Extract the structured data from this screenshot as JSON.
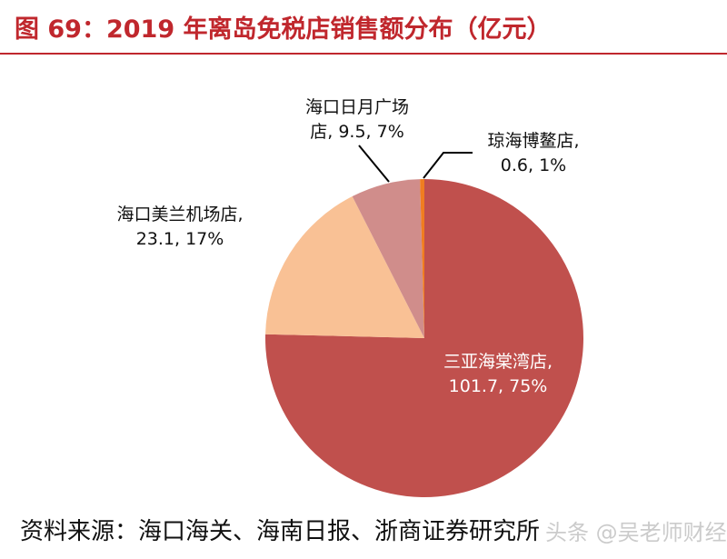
{
  "header": {
    "title": "图 69：2019 年离岛免税店销售额分布（亿元）"
  },
  "chart_data": {
    "type": "pie",
    "slices": [
      {
        "name": "三亚海棠湾店",
        "value": 101.7,
        "percent": "75%",
        "color": "#c0504d",
        "label_color": "#ffffff"
      },
      {
        "name": "海口美兰机场店",
        "value": 23.1,
        "percent": "17%",
        "color": "#f9c195",
        "label_color": "#111111"
      },
      {
        "name": "海口日月广场店",
        "value": 9.5,
        "percent": "7%",
        "color": "#d08d8b",
        "label_color": "#111111"
      },
      {
        "name": "琼海博鳌店",
        "value": 0.6,
        "percent": "1%",
        "color": "#f07d20",
        "label_color": "#111111"
      }
    ],
    "labels": [
      {
        "line1": "三亚海棠湾店,",
        "line2": "101.7, 75%"
      },
      {
        "line1": "海口美兰机场店,",
        "line2": "23.1, 17%"
      },
      {
        "line1": "海口日月广场",
        "line2": "店, 9.5, 7%"
      },
      {
        "line1": "琼海博鳌店,",
        "line2": "0.6, 1%"
      }
    ]
  },
  "footer": {
    "source": "资料来源：海口海关、海南日报、浙商证券研究所",
    "watermark": "头条 @吴老师财经"
  }
}
